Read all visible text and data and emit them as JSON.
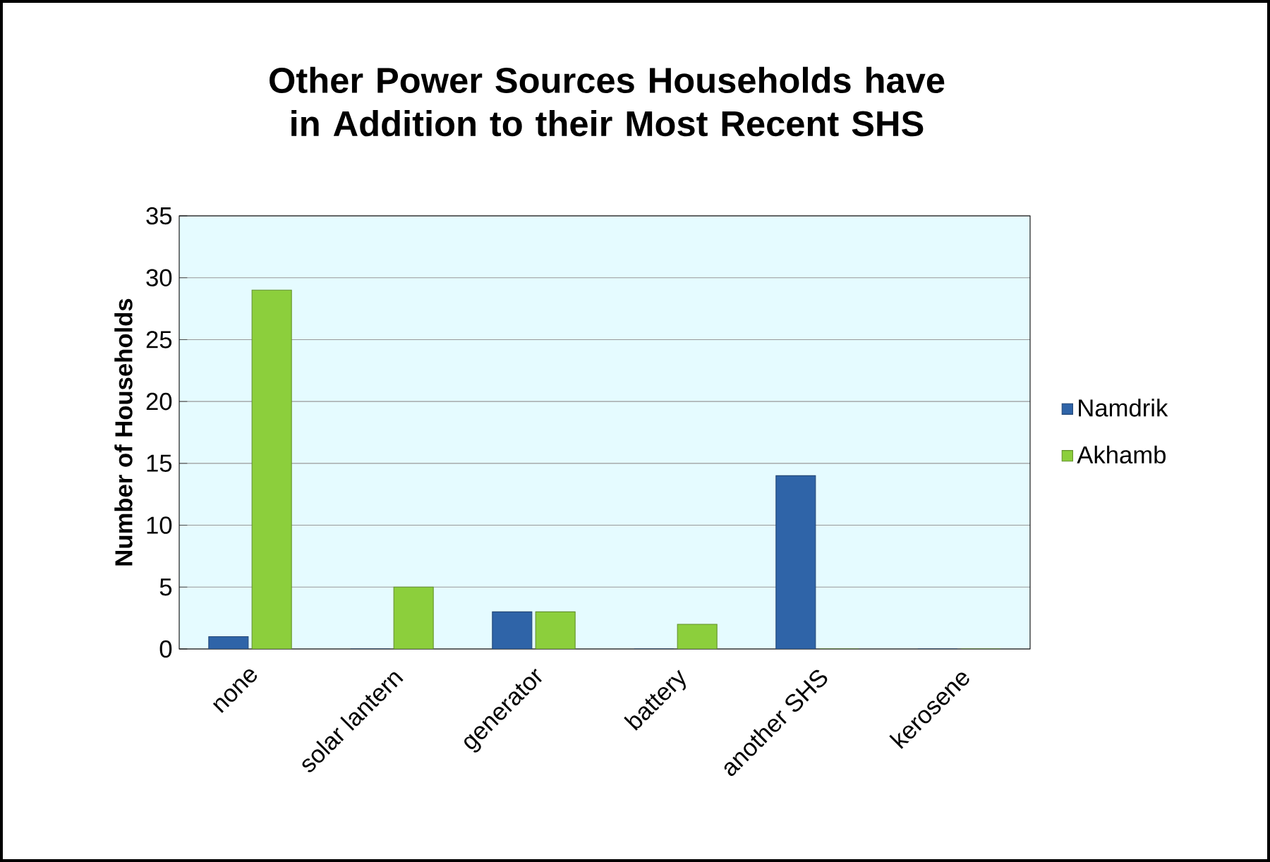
{
  "chart_data": {
    "type": "bar",
    "title": "Other Power Sources Households have in Addition to their Most Recent SHS",
    "ylabel": "Number of Households",
    "categories": [
      "none",
      "solar lantern",
      "generator",
      "battery",
      "another SHS",
      "kerosene"
    ],
    "series": [
      {
        "name": "Namdrik",
        "color": "#2f64a8",
        "values": [
          1,
          0,
          3,
          0,
          14,
          0
        ]
      },
      {
        "name": "Akhamb",
        "color": "#8ccf3c",
        "values": [
          29,
          5,
          3,
          2,
          0,
          0
        ]
      }
    ],
    "ylim": [
      0,
      35
    ],
    "yticks": [
      0,
      5,
      10,
      15,
      20,
      25,
      30,
      35
    ],
    "grid": "y",
    "legend": "right"
  }
}
